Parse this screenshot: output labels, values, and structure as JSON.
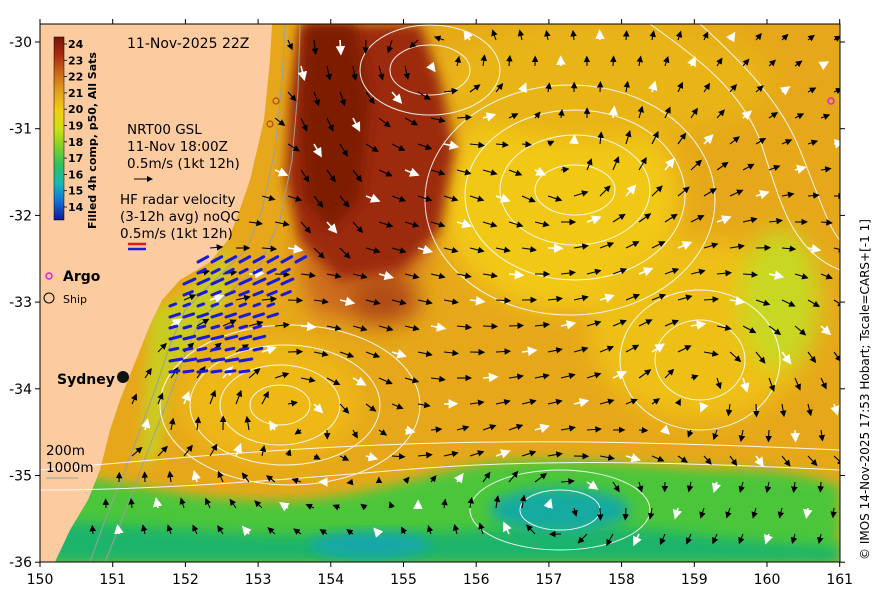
{
  "map": {
    "timestamp": "11-Nov-2025 22Z",
    "colorbar": {
      "title": "Filled 4h comp, p50, All Sats",
      "ticks": [
        "24",
        "23",
        "22",
        "21",
        "20",
        "19",
        "18",
        "17",
        "16",
        "15",
        "14"
      ],
      "colors": [
        "#8a1a08",
        "#b03a12",
        "#cc6a1a",
        "#e0a21c",
        "#f0cc12",
        "#cfe012",
        "#7fd128",
        "#30c060",
        "#18b8b8",
        "#1070d8",
        "#1020a0"
      ]
    },
    "current_legend": {
      "line1": "NRT00 GSL",
      "line2": "11-Nov 18:00Z",
      "line3": "0.5m/s (1kt 12h)"
    },
    "radar_legend": {
      "line1": "HF radar velocity",
      "line2": "(3-12h avg) noQC",
      "line3": "0.5m/s (1kt 12h)"
    },
    "markers": {
      "argo_label": "Argo",
      "ship_label": "Ship"
    },
    "city_label": "Sydney",
    "depth_labels": [
      "200m",
      "1000m"
    ],
    "x_ticks": [
      "150",
      "151",
      "152",
      "153",
      "154",
      "155",
      "156",
      "157",
      "158",
      "159",
      "160",
      "161"
    ],
    "y_ticks": [
      "-30",
      "-31",
      "-32",
      "-33",
      "-34",
      "-35",
      "-36"
    ],
    "credit": "© IMOS 14-Nov-2025 17:53 Hobart; Tscale=CARS+[-1 1]",
    "colors": {
      "land": "#fccca0",
      "warm_core": "#9c2a0c",
      "ocean_orange": "#e2a01a",
      "ocean_yellow": "#f2c814",
      "cool_green": "#3cc040",
      "radar_blue": "#1a1ad8",
      "argo_magenta": "#e020e0"
    }
  }
}
